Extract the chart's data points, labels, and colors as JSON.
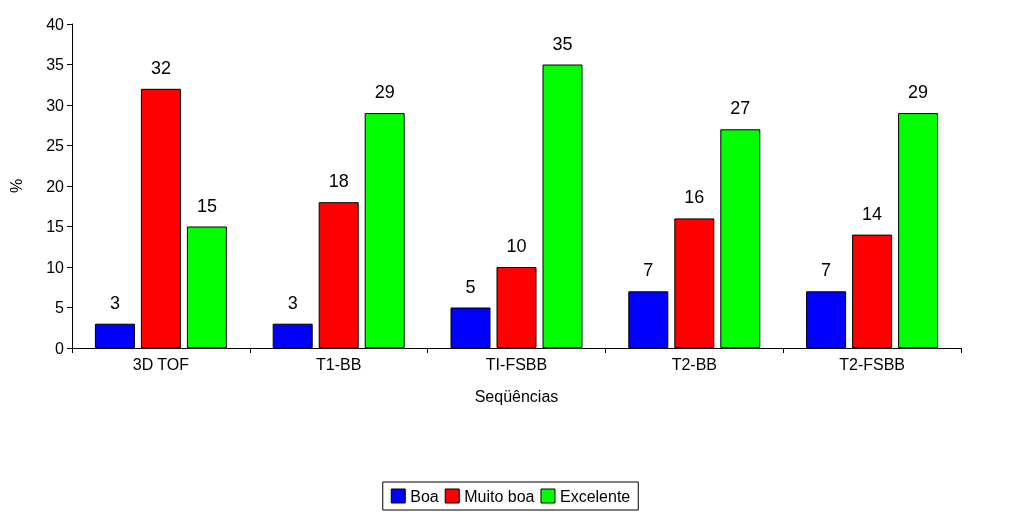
{
  "chart_data": {
    "type": "bar",
    "xlabel": "Seqüências",
    "ylabel": "%",
    "categories": [
      "3D TOF",
      "T1-BB",
      "TI-FSBB",
      "T2-BB",
      "T2-FSBB"
    ],
    "series": [
      {
        "name": "Boa",
        "color": "#0000ff",
        "values": [
          3,
          3,
          5,
          7,
          7
        ]
      },
      {
        "name": "Muito boa",
        "color": "#ff0000",
        "values": [
          32,
          18,
          10,
          16,
          14
        ]
      },
      {
        "name": "Excelente",
        "color": "#00ff00",
        "values": [
          15,
          29,
          35,
          27,
          29
        ]
      }
    ],
    "ylim": [
      0,
      40
    ],
    "yticks": [
      0,
      5,
      10,
      15,
      20,
      25,
      30,
      35,
      40
    ],
    "grid": false,
    "legend": "bottom",
    "data_labels": true
  }
}
